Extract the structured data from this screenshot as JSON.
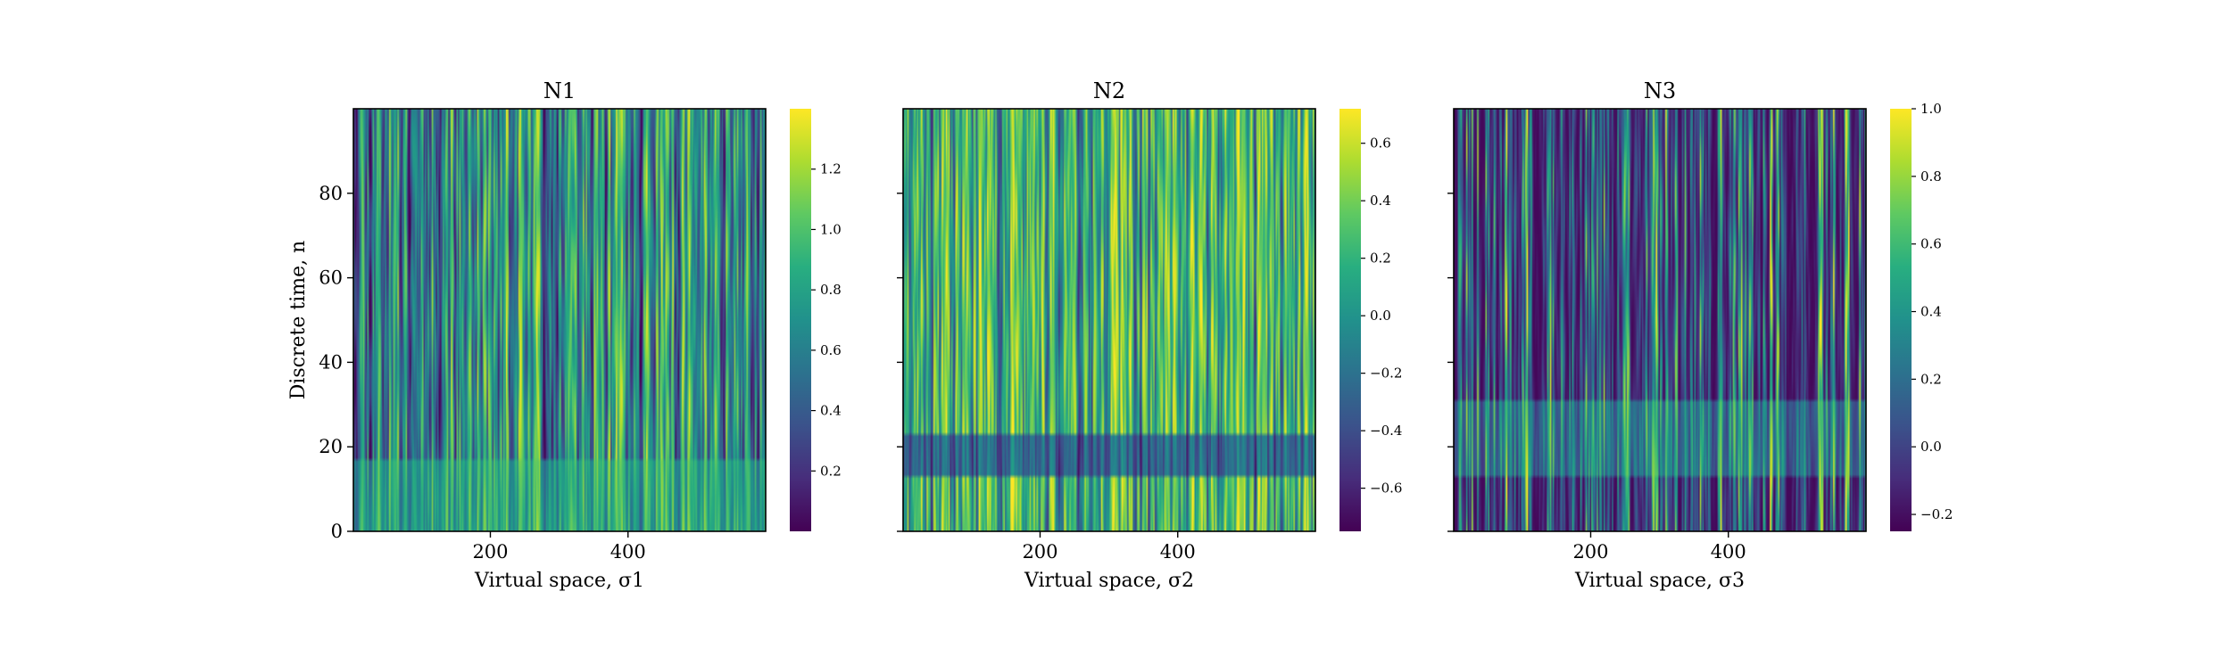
{
  "chart_data": [
    {
      "type": "heatmap",
      "title": "N1",
      "xlabel": "Virtual space, σ1",
      "ylabel": "Discrete time, n",
      "xlim": [
        1,
        600
      ],
      "ylim": [
        0,
        100
      ],
      "xticks": [
        200,
        400
      ],
      "yticks": [
        0,
        20,
        40,
        60,
        80
      ],
      "colormap": "viridis",
      "colorbar": {
        "range": [
          0.0,
          1.4
        ],
        "ticks": [
          0.2,
          0.4,
          0.6,
          0.8,
          1.0,
          1.2
        ],
        "tick_labels": [
          "0.2",
          "0.4",
          "0.6",
          "0.8",
          "1.0",
          "1.2"
        ]
      },
      "pattern": {
        "seed": 11,
        "contrast": 1.0,
        "band_start": 0,
        "band_end": 16,
        "band_shift": 0.08,
        "base": 0.55
      }
    },
    {
      "type": "heatmap",
      "title": "N2",
      "xlabel": "Virtual space, σ2",
      "ylabel": "",
      "xlim": [
        1,
        600
      ],
      "ylim": [
        0,
        100
      ],
      "xticks": [
        200,
        400
      ],
      "yticks": [
        0,
        20,
        40,
        60,
        80
      ],
      "colormap": "viridis",
      "colorbar": {
        "range": [
          -0.75,
          0.72
        ],
        "ticks": [
          -0.6,
          -0.4,
          -0.2,
          0.0,
          0.2,
          0.4,
          0.6
        ],
        "tick_labels": [
          "−0.6",
          "−0.4",
          "−0.2",
          "0.0",
          "0.2",
          "0.4",
          "0.6"
        ]
      },
      "pattern": {
        "seed": 23,
        "contrast": 0.55,
        "band_start": 13,
        "band_end": 22,
        "band_shift": -0.28,
        "base": 0.55
      }
    },
    {
      "type": "heatmap",
      "title": "N3",
      "xlabel": "Virtual space, σ3",
      "ylabel": "",
      "xlim": [
        1,
        600
      ],
      "ylim": [
        0,
        100
      ],
      "xticks": [
        200,
        400
      ],
      "yticks": [
        0,
        20,
        40,
        60,
        80
      ],
      "colormap": "viridis",
      "colorbar": {
        "range": [
          -0.25,
          1.0
        ],
        "ticks": [
          -0.2,
          0.0,
          0.2,
          0.4,
          0.6,
          0.8,
          1.0
        ],
        "tick_labels": [
          "−0.2",
          "0.0",
          "0.2",
          "0.4",
          "0.6",
          "0.8",
          "1.0"
        ]
      },
      "pattern": {
        "seed": 37,
        "contrast": 1.6,
        "band_start": 13,
        "band_end": 30,
        "band_shift": 0.12,
        "base": 0.08
      }
    }
  ]
}
